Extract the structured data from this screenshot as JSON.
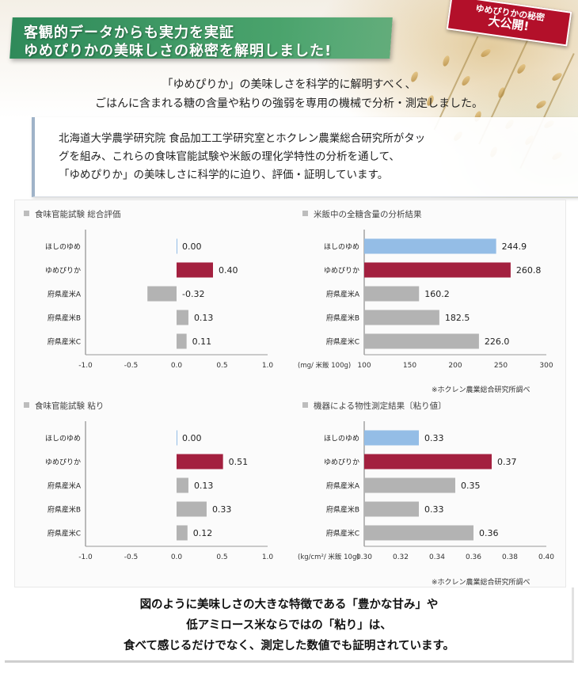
{
  "header": {
    "title_line1": "客観的データからも実力を実証",
    "title_line2": "ゆめぴりかの美味しさの秘密を解明しました!",
    "badge_line1": "ゆめぴりかの秘密",
    "badge_line2": "大公開!"
  },
  "intro": {
    "line1": "「ゆめぴりか」の美味しさを科学的に解明すべく、",
    "line2": "ごはんに含まれる糖の含量や粘りの強弱を専用の機械で分析・測定しました。"
  },
  "panel": {
    "line1": "北海道大学農学研究院 食品加工工学研究室とホクレン農業総合研究所がタッ",
    "line2": "グを組み、これらの食味官能試験や米飯の理化学特性の分析を通して、",
    "line3": "「ゆめぴりか」の美味しさに科学的に迫り、評価・証明しています。"
  },
  "colors": {
    "hoshi": "#94bde6",
    "yume": "#a3203f",
    "other": "#b3b3b3",
    "title_band": "#3d9862",
    "badge": "#b3102a"
  },
  "notes": {
    "top_right": "※ホクレン農業総合研究所調べ",
    "bottom_right": "※ホクレン農業総合研究所調べ"
  },
  "summary": {
    "line1": "図のように美味しさの大きな特徴である「豊かな甘み」や",
    "line2": "低アミロース米ならではの「粘り」は、",
    "line3": "食べて感じるだけでなく、測定した数値でも証明されています。"
  },
  "chart_data": [
    {
      "type": "bar",
      "orientation": "horizontal",
      "title": "食味官能試験 総合評価",
      "categories": [
        "ほしのゆめ",
        "ゆめぴりか",
        "府県産米A",
        "府県産米B",
        "府県産米C"
      ],
      "values": [
        0.0,
        0.4,
        -0.32,
        0.13,
        0.11
      ],
      "value_labels": [
        "0.00",
        "0.40",
        "-0.32",
        "0.13",
        "0.11"
      ],
      "xlim": [
        -1.0,
        1.0
      ],
      "xticks": [
        -1.0,
        -0.5,
        0.0,
        0.5,
        1.0
      ],
      "xtick_labels": [
        "-1.0",
        "-0.5",
        "0.0",
        "0.5",
        "1.0"
      ],
      "xlabel": "",
      "grid": false
    },
    {
      "type": "bar",
      "orientation": "horizontal",
      "title": "米飯中の全糖含量の分析結果",
      "categories": [
        "ほしのゆめ",
        "ゆめぴりか",
        "府県産米A",
        "府県産米B",
        "府県産米C"
      ],
      "values": [
        244.9,
        260.8,
        160.2,
        182.5,
        226.0
      ],
      "value_labels": [
        "244.9",
        "260.8",
        "160.2",
        "182.5",
        "226.0"
      ],
      "xlim": [
        100,
        300
      ],
      "xticks": [
        100,
        150,
        200,
        250,
        300
      ],
      "xtick_labels": [
        "100",
        "150",
        "200",
        "250",
        "300"
      ],
      "xlabel": "(mg/ 米飯 100g)",
      "grid": false
    },
    {
      "type": "bar",
      "orientation": "horizontal",
      "title": "食味官能試験 粘り",
      "categories": [
        "ほしのゆめ",
        "ゆめぴりか",
        "府県産米A",
        "府県産米B",
        "府県産米C"
      ],
      "values": [
        0.0,
        0.51,
        0.13,
        0.33,
        0.12
      ],
      "value_labels": [
        "0.00",
        "0.51",
        "0.13",
        "0.33",
        "0.12"
      ],
      "xlim": [
        -1.0,
        1.0
      ],
      "xticks": [
        -1.0,
        -0.5,
        0.0,
        0.5,
        1.0
      ],
      "xtick_labels": [
        "-1.0",
        "-0.5",
        "0.0",
        "0.5",
        "1.0"
      ],
      "xlabel": "",
      "grid": false
    },
    {
      "type": "bar",
      "orientation": "horizontal",
      "title": "機器による物性測定結果〔粘り値〕",
      "categories": [
        "ほしのゆめ",
        "ゆめぴりか",
        "府県産米A",
        "府県産米B",
        "府県産米C"
      ],
      "values": [
        0.33,
        0.37,
        0.35,
        0.33,
        0.36
      ],
      "value_labels": [
        "0.33",
        "0.37",
        "0.35",
        "0.33",
        "0.36"
      ],
      "xlim": [
        0.3,
        0.4
      ],
      "xticks": [
        0.3,
        0.32,
        0.34,
        0.36,
        0.38,
        0.4
      ],
      "xtick_labels": [
        "0.30",
        "0.32",
        "0.34",
        "0.36",
        "0.38",
        "0.40"
      ],
      "xlabel": "(kg/cm²/ 米飯 10g)",
      "grid": false
    }
  ]
}
